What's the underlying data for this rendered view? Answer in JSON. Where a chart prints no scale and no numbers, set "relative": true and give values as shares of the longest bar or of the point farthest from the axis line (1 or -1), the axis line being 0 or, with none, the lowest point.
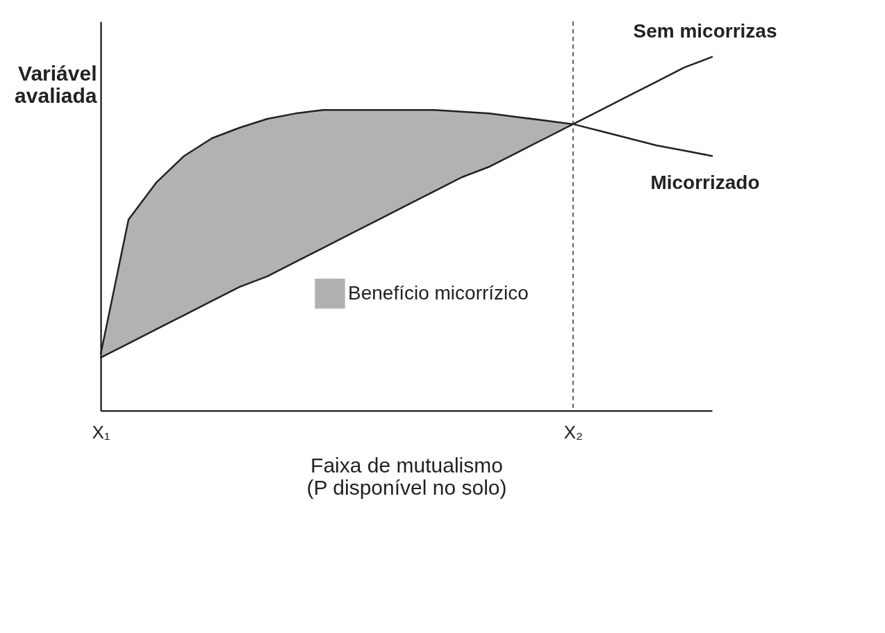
{
  "chart_data": {
    "type": "line",
    "relative": true,
    "xlabel": "Faixa de mutualismo\n(P disponível no solo)",
    "ylabel": "Variável\navaliada",
    "categories": [
      "X₁",
      null,
      null,
      null,
      null,
      null,
      null,
      null,
      null,
      null,
      null,
      null,
      null,
      null,
      null,
      null,
      null,
      "X₂",
      null,
      null,
      null,
      null,
      null
    ],
    "tick_labels": "x",
    "grid": false,
    "line_style": "solid",
    "marker": "none",
    "annotations": [
      "Benefício micorrízico"
    ],
    "series": [
      {
        "name": "Sem micorrizas",
        "color": "#222222",
        "values": [
          0.15,
          0.19,
          0.23,
          0.27,
          0.31,
          0.35,
          0.38,
          0.42,
          0.46,
          0.5,
          0.54,
          0.58,
          0.62,
          0.66,
          0.69,
          0.73,
          0.77,
          0.81,
          0.85,
          0.89,
          0.93,
          0.97,
          1
        ]
      },
      {
        "name": "Micorrizado",
        "color": "#222222",
        "values": [
          0.16,
          0.54,
          0.645,
          0.72,
          0.77,
          0.8,
          0.825,
          0.84,
          0.85,
          0.85,
          0.85,
          0.85,
          0.85,
          0.845,
          0.84,
          0.83,
          0.82,
          0.81,
          0.79,
          0.77,
          0.75,
          0.735,
          0.72
        ],
        "lower": [
          0.15,
          0.19,
          0.23,
          0.27,
          0.31,
          0.35,
          0.38,
          0.42,
          0.46,
          0.5,
          0.54,
          0.58,
          0.62,
          0.66,
          0.69,
          0.73,
          0.77,
          0.81,
          null,
          null,
          null,
          null,
          null
        ],
        "upper": [
          0.16,
          0.54,
          0.645,
          0.72,
          0.77,
          0.8,
          0.825,
          0.84,
          0.85,
          0.85,
          0.85,
          0.85,
          0.85,
          0.845,
          0.84,
          0.83,
          0.82,
          0.81,
          null,
          null,
          null,
          null,
          null
        ]
      }
    ],
    "ref_lines": [
      {
        "axis": "x",
        "value": "X₂",
        "line_style": "dashed"
      }
    ]
  }
}
